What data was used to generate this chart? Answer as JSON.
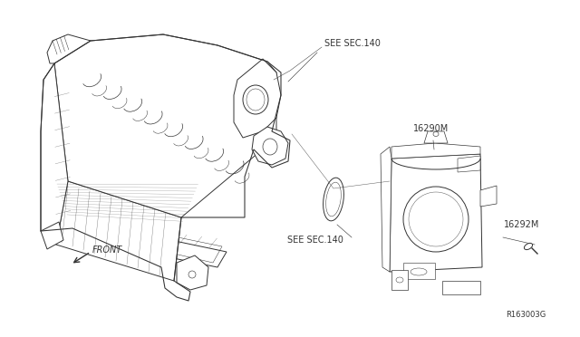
{
  "background_color": "#ffffff",
  "line_color": "#333333",
  "text_color": "#333333",
  "fig_width": 6.4,
  "fig_height": 3.72,
  "dpi": 100,
  "labels": {
    "see_sec_140_top": "SEE SEC.140",
    "see_sec_140_bottom": "SEE SEC.140",
    "part_16290m": "16290M",
    "part_16292m": "16292M",
    "front": "FRONT",
    "diagram_id": "R163003G"
  }
}
